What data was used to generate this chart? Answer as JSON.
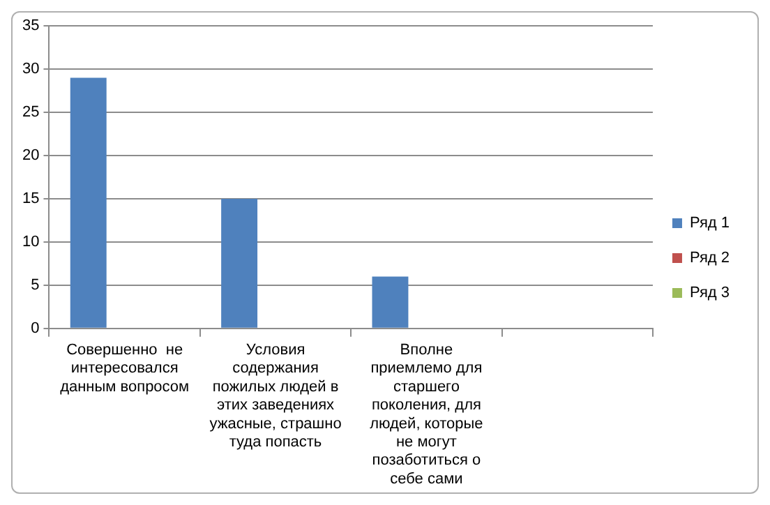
{
  "chart_data": {
    "type": "bar",
    "categories": [
      "Совершенно  не интересовался данным вопросом",
      "Условия содержания пожилых людей в этих заведениях ужасные, страшно туда попасть",
      "Вполне приемлемо для старшего поколения, для людей, которые не могут позаботиться о себе сами",
      null
    ],
    "series": [
      {
        "name": "Ряд 1",
        "color": "#4f81bd",
        "values": [
          29,
          15,
          6,
          null
        ]
      },
      {
        "name": "Ряд 2",
        "color": "#c0504d",
        "values": [
          null,
          null,
          null,
          null
        ]
      },
      {
        "name": "Ряд 3",
        "color": "#9bbb59",
        "values": [
          null,
          null,
          null,
          null
        ]
      }
    ],
    "ylim": [
      0,
      35
    ],
    "yticks": [
      0,
      5,
      10,
      15,
      20,
      25,
      30,
      35
    ],
    "grid": "y",
    "legend": "right"
  }
}
